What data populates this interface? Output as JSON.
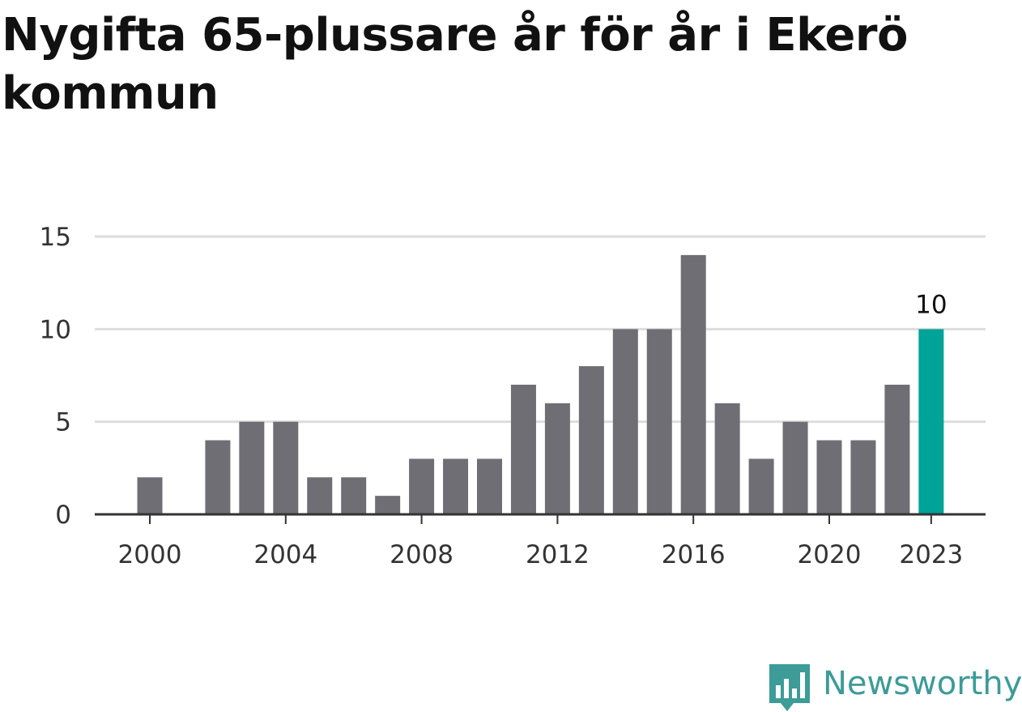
{
  "title": "Nygifta 65-plussare år för år i Ekerö kommun",
  "brand": {
    "name": "Newsworthy",
    "color": "#3d9b98",
    "icon": "bar-chart-speech-bubble-icon"
  },
  "colors": {
    "bar": "#6e6e74",
    "highlight": "#00a398",
    "grid": "#dddddd",
    "axis": "#333333"
  },
  "chart_data": {
    "type": "bar",
    "title": "Nygifta 65-plussare år för år i Ekerö kommun",
    "xlabel": "",
    "ylabel": "",
    "categories": [
      "2000",
      "2001",
      "2002",
      "2003",
      "2004",
      "2005",
      "2006",
      "2007",
      "2008",
      "2009",
      "2010",
      "2011",
      "2012",
      "2013",
      "2014",
      "2015",
      "2016",
      "2017",
      "2018",
      "2019",
      "2020",
      "2021",
      "2022",
      "2023"
    ],
    "values": [
      2,
      0,
      4,
      5,
      5,
      2,
      2,
      1,
      3,
      3,
      3,
      7,
      6,
      8,
      10,
      10,
      14,
      6,
      3,
      5,
      4,
      4,
      7,
      10
    ],
    "ylim": [
      0,
      15
    ],
    "yticks": [
      0,
      5,
      10,
      15
    ],
    "xticks": [
      "2000",
      "2004",
      "2008",
      "2012",
      "2016",
      "2020",
      "2023"
    ],
    "highlight": {
      "category": "2023",
      "value": 10,
      "label": "10"
    },
    "grid": true
  }
}
